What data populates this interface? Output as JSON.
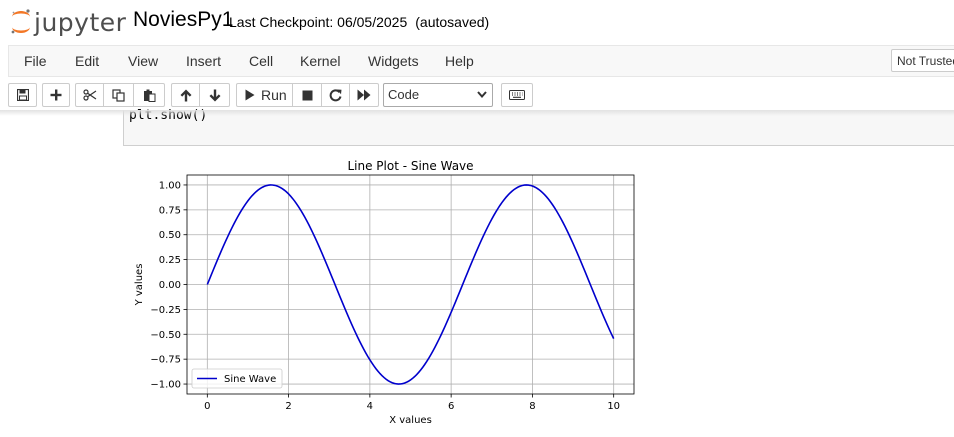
{
  "header": {
    "logo_text": "jupyter",
    "notebook_name": "NoviesPy1",
    "checkpoint_label": "Last Checkpoint: 06/05/2025",
    "save_status": "(autosaved)"
  },
  "menubar": {
    "items": [
      "File",
      "Edit",
      "View",
      "Insert",
      "Cell",
      "Kernel",
      "Widgets",
      "Help"
    ],
    "trust_label": "Not Trusted"
  },
  "toolbar": {
    "run_label": "Run",
    "cell_type": "Code",
    "icons": [
      "save-icon",
      "plus-icon",
      "cut-icon",
      "copy-icon",
      "paste-icon",
      "arrow-up-icon",
      "arrow-down-icon",
      "play-icon",
      "stop-icon",
      "restart-icon",
      "fast-forward-icon",
      "keyboard-icon"
    ]
  },
  "code_cell": {
    "source": "plt.show()"
  },
  "chart_data": {
    "type": "line",
    "title": "Line Plot - Sine Wave",
    "xlabel": "X values",
    "ylabel": "Y values",
    "xlim": [
      -0.5,
      10.5
    ],
    "ylim": [
      -1.1,
      1.1
    ],
    "xticks": [
      0,
      2,
      4,
      6,
      8,
      10
    ],
    "xtick_labels": [
      "0",
      "2",
      "4",
      "6",
      "8",
      "10"
    ],
    "yticks": [
      1.0,
      0.75,
      0.5,
      0.25,
      0.0,
      -0.25,
      -0.5,
      -0.75,
      -1.0
    ],
    "ytick_labels": [
      "1.00",
      "0.75",
      "0.50",
      "0.25",
      "0.00",
      "−0.25",
      "−0.50",
      "−0.75",
      "−1.00"
    ],
    "grid": true,
    "legend_position": "lower-left",
    "series": [
      {
        "name": "Sine Wave",
        "function": "sin(x)",
        "x_range": [
          0,
          10
        ],
        "color": "#0000cc"
      }
    ]
  }
}
